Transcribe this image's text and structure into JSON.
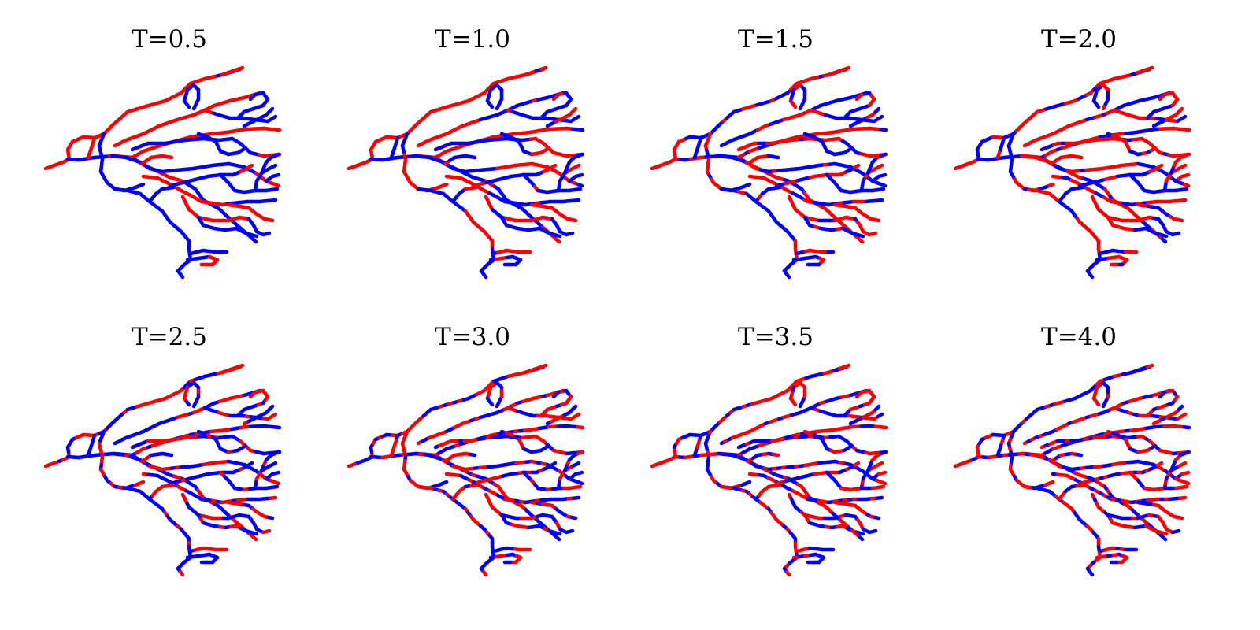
{
  "panels": [
    {
      "title": "T=0.5"
    },
    {
      "title": "T=1.0"
    },
    {
      "title": "T=1.5"
    },
    {
      "title": "T=2.0"
    },
    {
      "title": "T=2.5"
    },
    {
      "title": "T=3.0"
    },
    {
      "title": "T=3.5"
    },
    {
      "title": "T=4.0"
    }
  ],
  "colors": {
    "red": "#ff0000",
    "blue": "#0000ff",
    "background": "#ffffff",
    "text": "#000000"
  }
}
